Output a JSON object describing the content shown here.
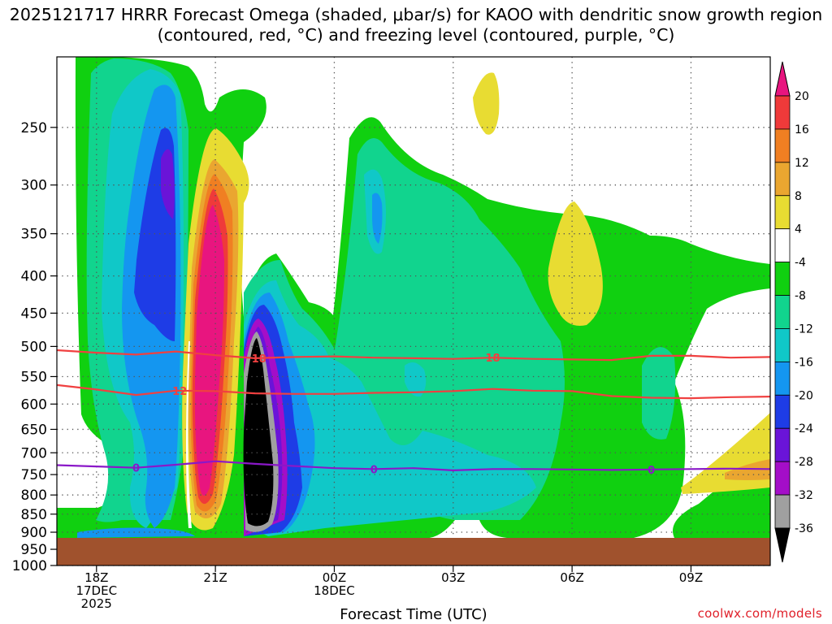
{
  "title": "2025121717 HRRR Forecast Omega (shaded, μbar/s) for KAOO with dendritic snow growth region (contoured, red, °C) and freezing level (contoured, purple, °C)",
  "credit": "coolwx.com/models",
  "chart_data": {
    "type": "heatmap",
    "title": "2025121717 HRRR Forecast Omega (shaded, μbar/s) for KAOO with dendritic snow growth region (contoured, red, °C) and freezing level (contoured, purple, °C)",
    "xlabel": "Forecast Time (UTC)",
    "ylabel": "",
    "x_ticks": [
      {
        "hour": 18,
        "label": [
          "18Z",
          "17DEC",
          "2025"
        ]
      },
      {
        "hour": 21,
        "label": [
          "21Z"
        ]
      },
      {
        "hour": 24,
        "label": [
          "00Z",
          "18DEC"
        ]
      },
      {
        "hour": 27,
        "label": [
          "03Z"
        ]
      },
      {
        "hour": 30,
        "label": [
          "06Z"
        ]
      },
      {
        "hour": 33,
        "label": [
          "09Z"
        ]
      }
    ],
    "xlim_hours": [
      17,
      35
    ],
    "y_ticks": [
      250,
      300,
      350,
      400,
      450,
      500,
      550,
      600,
      650,
      700,
      750,
      800,
      850,
      900,
      950,
      1000
    ],
    "ylim_hpa": [
      200,
      1000
    ],
    "y_scale": "log-pressure (inverted)",
    "grid": "dotted",
    "colorbar": {
      "labels": [
        "20",
        "16",
        "12",
        "8",
        "4",
        "-4",
        "-8",
        "-12",
        "-16",
        "-20",
        "-24",
        "-28",
        "-32",
        "-36"
      ],
      "bins": [
        {
          "range": "> 20",
          "color": "#e8157f"
        },
        {
          "range": "16 to 20",
          "color": "#ef3a3a"
        },
        {
          "range": "12 to 16",
          "color": "#f07f22"
        },
        {
          "range": "8 to 12",
          "color": "#eaa630"
        },
        {
          "range": "4 to 8",
          "color": "#e8dc32"
        },
        {
          "range": "-4 to 4",
          "color": "#ffffff"
        },
        {
          "range": "-8 to -4",
          "color": "#10d010"
        },
        {
          "range": "-12 to -8",
          "color": "#11d48e"
        },
        {
          "range": "-16 to -12",
          "color": "#10c8c8"
        },
        {
          "range": "-20 to -16",
          "color": "#1496f0"
        },
        {
          "range": "-24 to -20",
          "color": "#1e3ce6"
        },
        {
          "range": "-28 to -24",
          "color": "#6a14d8"
        },
        {
          "range": "-32 to -28",
          "color": "#a40ec8"
        },
        {
          "range": "-36 to -32",
          "color": "#a0a0a0"
        },
        {
          "range": "< -36",
          "color": "#000000"
        }
      ]
    },
    "contours": [
      {
        "value": "-18",
        "color": "#f04040",
        "label_hours": [
          22.1,
          28.0
        ],
        "points": [
          [
            17,
            506
          ],
          [
            18,
            510
          ],
          [
            19,
            513
          ],
          [
            20,
            508
          ],
          [
            21,
            514
          ],
          [
            22,
            519
          ],
          [
            23,
            517
          ],
          [
            24,
            516
          ],
          [
            25,
            518
          ],
          [
            26,
            519
          ],
          [
            27,
            520
          ],
          [
            28,
            518
          ],
          [
            29,
            520
          ],
          [
            30,
            521
          ],
          [
            31,
            522
          ],
          [
            32,
            515
          ],
          [
            33,
            515
          ],
          [
            34,
            518
          ],
          [
            35,
            517
          ]
        ]
      },
      {
        "value": "-12",
        "color": "#f04040",
        "label_hours": [
          20.1
        ],
        "points": [
          [
            17,
            565
          ],
          [
            18,
            573
          ],
          [
            19,
            583
          ],
          [
            20,
            575
          ],
          [
            21,
            576
          ],
          [
            22,
            580
          ],
          [
            23,
            581
          ],
          [
            24,
            581
          ],
          [
            25,
            579
          ],
          [
            26,
            578
          ],
          [
            27,
            576
          ],
          [
            28,
            572
          ],
          [
            29,
            575
          ],
          [
            30,
            576
          ],
          [
            31,
            585
          ],
          [
            32,
            588
          ],
          [
            33,
            589
          ],
          [
            34,
            587
          ],
          [
            35,
            586
          ]
        ]
      },
      {
        "value": "0",
        "color": "#8a18c8",
        "label_hours": [
          19.0,
          25.0,
          32.0
        ],
        "points": [
          [
            17,
            728
          ],
          [
            18,
            731
          ],
          [
            19,
            734
          ],
          [
            20,
            727
          ],
          [
            21,
            719
          ],
          [
            22,
            725
          ],
          [
            23,
            730
          ],
          [
            24,
            735
          ],
          [
            25,
            737
          ],
          [
            26,
            735
          ],
          [
            27,
            740
          ],
          [
            28,
            737
          ],
          [
            29,
            737
          ],
          [
            30,
            738
          ],
          [
            31,
            739
          ],
          [
            32,
            738
          ],
          [
            33,
            737
          ],
          [
            34,
            736
          ],
          [
            35,
            737
          ]
        ]
      }
    ],
    "surface_color": "#a0522d"
  }
}
